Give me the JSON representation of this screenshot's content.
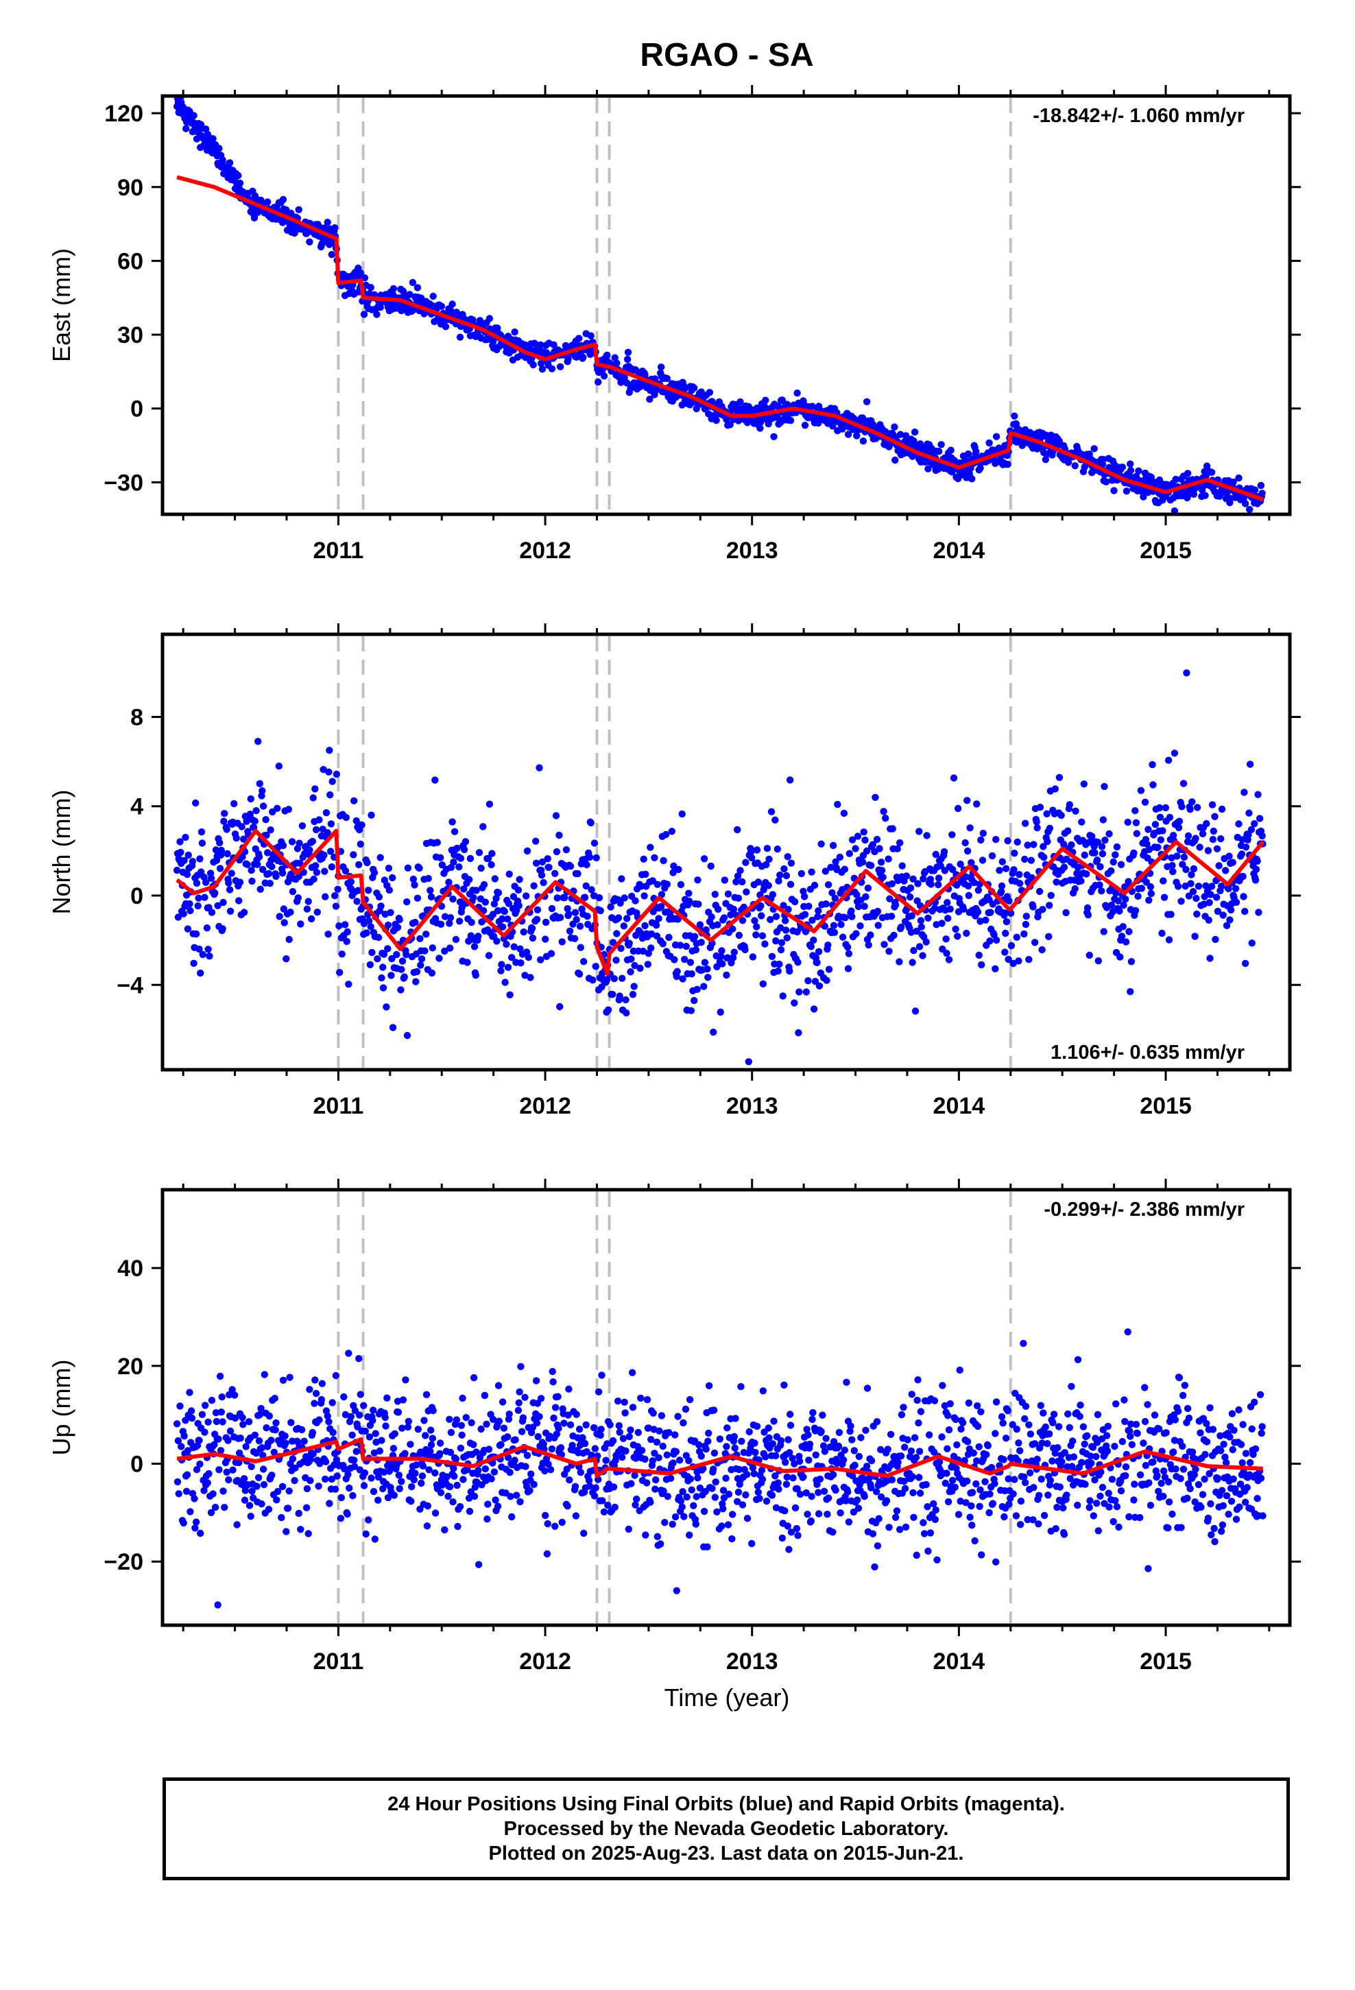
{
  "title": "RGAO - SA",
  "colors": {
    "data_points": "#0000ff",
    "model_line": "#ff0000",
    "event_lines": "#c0c0c0",
    "frame": "#000000"
  },
  "x_axis": {
    "label": "Time (year)",
    "range": [
      2010.15,
      2015.6
    ],
    "ticks": [
      "2011",
      "2012",
      "2013",
      "2014",
      "2015"
    ],
    "tick_values": [
      2011,
      2012,
      2013,
      2014,
      2015
    ]
  },
  "event_years": [
    2011.0,
    2011.12,
    2012.25,
    2012.31,
    2014.25
  ],
  "footer": {
    "line1": "24 Hour Positions Using Final Orbits (blue) and Rapid Orbits (magenta).",
    "line2": "Processed by the Nevada Geodetic Laboratory.",
    "line3": "Plotted on 2025-Aug-23. Last data on 2015-Jun-21."
  },
  "chart_data": [
    {
      "type": "scatter",
      "ylabel": "East (mm)",
      "ylim": [
        -43,
        127
      ],
      "yticks": [
        120,
        90,
        60,
        30,
        0,
        -30
      ],
      "ytick_labels": [
        "120",
        "90",
        "60",
        "30",
        "0",
        "−30"
      ],
      "rate": "-18.842+/- 1.060 mm/yr",
      "rate_position": "top-right",
      "trend": {
        "start": 2010.22,
        "end": 2015.47,
        "values_sampled": [
          95,
          70,
          50,
          37,
          22,
          17,
          2,
          -8,
          -20,
          -31,
          -36
        ]
      },
      "scatter_std_mm": 2.5,
      "series": [
        {
          "name": "model",
          "kind": "line",
          "x": [
            2010.22,
            2010.4,
            2010.6,
            2010.8,
            2010.99,
            2011.0,
            2011.11,
            2011.12,
            2011.3,
            2011.5,
            2011.7,
            2011.9,
            2012.0,
            2012.15,
            2012.24,
            2012.25,
            2012.3,
            2012.31,
            2012.5,
            2012.7,
            2012.9,
            2013.0,
            2013.2,
            2013.4,
            2013.6,
            2013.8,
            2014.0,
            2014.24,
            2014.25,
            2014.4,
            2014.6,
            2014.8,
            2015.0,
            2015.2,
            2015.47
          ],
          "y": [
            94,
            90,
            83,
            76,
            69,
            51,
            52,
            45,
            44,
            38,
            32,
            23,
            20,
            24,
            26,
            18,
            17,
            17,
            11,
            5,
            -3,
            -3,
            0,
            -3,
            -10,
            -18,
            -24,
            -17,
            -10,
            -14,
            -21,
            -29,
            -34,
            -29,
            -37
          ]
        }
      ]
    },
    {
      "type": "scatter",
      "ylabel": "North (mm)",
      "ylim": [
        -7.8,
        11.7
      ],
      "yticks": [
        8,
        4,
        0,
        -4
      ],
      "ytick_labels": [
        "8",
        "4",
        "0",
        "−4"
      ],
      "rate": "1.106+/- 0.635 mm/yr",
      "rate_position": "bottom-right",
      "scatter_std_mm": 1.6,
      "series": [
        {
          "name": "model",
          "kind": "line",
          "x": [
            2010.22,
            2010.3,
            2010.4,
            2010.6,
            2010.8,
            2010.99,
            2011.0,
            2011.11,
            2011.12,
            2011.3,
            2011.55,
            2011.8,
            2012.05,
            2012.24,
            2012.25,
            2012.3,
            2012.31,
            2012.55,
            2012.8,
            2013.05,
            2013.3,
            2013.55,
            2013.8,
            2014.05,
            2014.24,
            2014.25,
            2014.5,
            2014.8,
            2015.05,
            2015.3,
            2015.47
          ],
          "y": [
            0.7,
            0.1,
            0.4,
            2.9,
            1.0,
            2.9,
            0.8,
            0.9,
            -0.3,
            -2.4,
            0.4,
            -1.8,
            0.6,
            -0.7,
            -2.3,
            -3.5,
            -2.6,
            -0.1,
            -2.0,
            -0.1,
            -1.6,
            1.1,
            -0.8,
            1.3,
            -0.6,
            -0.6,
            2.1,
            0.1,
            2.4,
            0.5,
            2.4
          ]
        }
      ]
    },
    {
      "type": "scatter",
      "ylabel": "Up (mm)",
      "ylim": [
        -33,
        56
      ],
      "yticks": [
        40,
        20,
        0,
        -20
      ],
      "ytick_labels": [
        "40",
        "20",
        "0",
        "−20"
      ],
      "rate": "-0.299+/- 2.386 mm/yr",
      "rate_position": "top-right",
      "scatter_std_mm": 7,
      "series": [
        {
          "name": "model",
          "kind": "line",
          "x": [
            2010.22,
            2010.4,
            2010.6,
            2010.8,
            2010.99,
            2011.0,
            2011.11,
            2011.12,
            2011.4,
            2011.65,
            2011.9,
            2012.15,
            2012.24,
            2012.25,
            2012.3,
            2012.31,
            2012.6,
            2012.9,
            2013.15,
            2013.4,
            2013.65,
            2013.9,
            2014.15,
            2014.24,
            2014.25,
            2014.6,
            2014.9,
            2015.2,
            2015.47
          ],
          "y": [
            1,
            2,
            0.5,
            2.5,
            4.5,
            3,
            5,
            1,
            1,
            -0.5,
            3.5,
            0,
            1,
            -2.5,
            -1,
            -1,
            -2,
            1.5,
            -1.5,
            -1,
            -2.5,
            1.5,
            -2,
            -0.5,
            0,
            -2,
            2.5,
            -0.5,
            -1
          ]
        }
      ]
    }
  ]
}
